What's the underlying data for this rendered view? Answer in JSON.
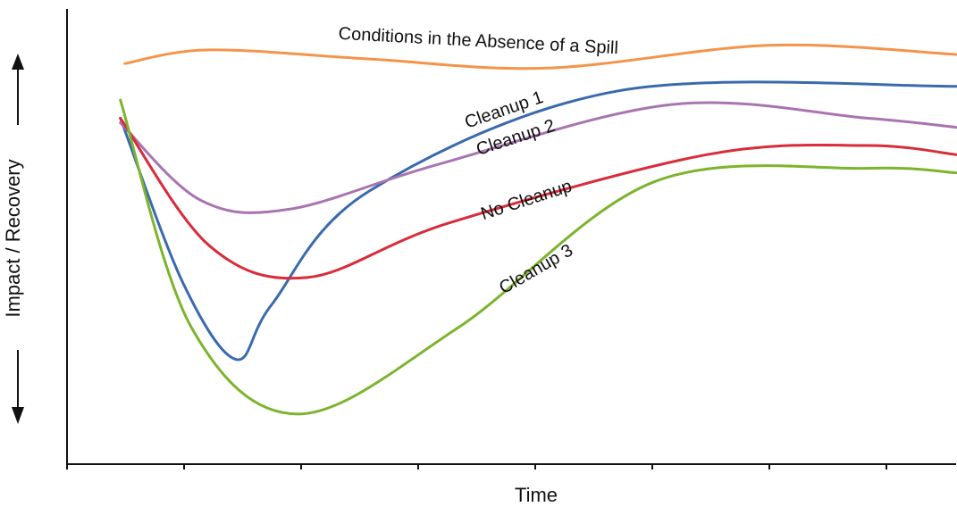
{
  "chart_data": {
    "type": "line",
    "title": "",
    "xlabel": "Time",
    "ylabel": "Impact / Recovery",
    "xlim": [
      0,
      1
    ],
    "ylim": [
      0,
      1
    ],
    "x_tick_count": 8,
    "x_tick_labels": [],
    "y_tick_labels": [],
    "grid": false,
    "legend": "none (series labeled inline)",
    "series": [
      {
        "name": "Conditions in the Absence of a Spill",
        "color": "#F4944A",
        "points": [
          [
            0.065,
            0.88
          ],
          [
            0.16,
            0.91
          ],
          [
            0.34,
            0.89
          ],
          [
            0.54,
            0.87
          ],
          [
            0.79,
            0.92
          ],
          [
            1.0,
            0.9
          ]
        ]
      },
      {
        "name": "Cleanup 1",
        "color": "#3A6AAE",
        "points": [
          [
            0.06,
            0.76
          ],
          [
            0.13,
            0.4
          ],
          [
            0.19,
            0.23
          ],
          [
            0.23,
            0.35
          ],
          [
            0.34,
            0.6
          ],
          [
            0.62,
            0.82
          ],
          [
            1.0,
            0.83
          ]
        ]
      },
      {
        "name": "Cleanup 2",
        "color": "#A974B0",
        "points": [
          [
            0.06,
            0.75
          ],
          [
            0.15,
            0.58
          ],
          [
            0.25,
            0.56
          ],
          [
            0.42,
            0.66
          ],
          [
            0.68,
            0.79
          ],
          [
            0.9,
            0.76
          ],
          [
            1.0,
            0.74
          ]
        ]
      },
      {
        "name": "No Cleanup",
        "color": "#D92B3A",
        "points": [
          [
            0.06,
            0.76
          ],
          [
            0.16,
            0.48
          ],
          [
            0.27,
            0.41
          ],
          [
            0.43,
            0.53
          ],
          [
            0.72,
            0.68
          ],
          [
            0.9,
            0.7
          ],
          [
            1.0,
            0.68
          ]
        ]
      },
      {
        "name": "Cleanup 3",
        "color": "#7CB42D",
        "points": [
          [
            0.06,
            0.8
          ],
          [
            0.14,
            0.3
          ],
          [
            0.26,
            0.11
          ],
          [
            0.44,
            0.3
          ],
          [
            0.66,
            0.62
          ],
          [
            0.9,
            0.65
          ],
          [
            1.0,
            0.64
          ]
        ]
      }
    ],
    "annotations": [
      {
        "text": "Conditions in the Absence of a Spill",
        "series": 0
      },
      {
        "text": "Cleanup 1",
        "series": 1
      },
      {
        "text": "Cleanup 2",
        "series": 2
      },
      {
        "text": "No Cleanup",
        "series": 3
      },
      {
        "text": "Cleanup 3",
        "series": 4
      }
    ]
  }
}
